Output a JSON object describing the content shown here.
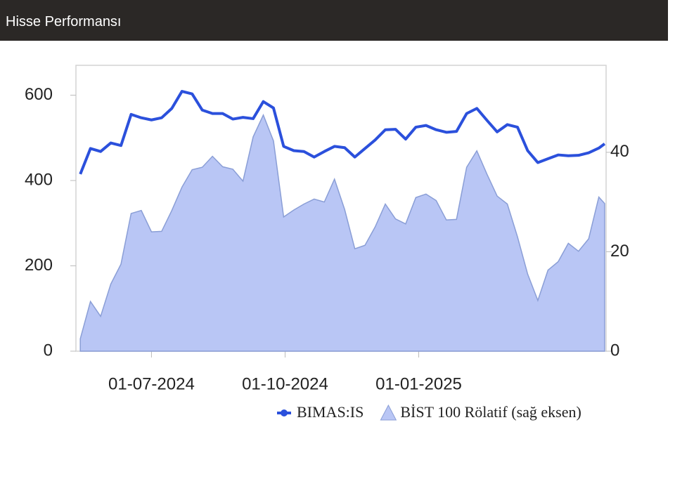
{
  "header": {
    "title": "Hisse Performansı"
  },
  "chart_data": {
    "type": "line",
    "x": [
      "2024-05-13",
      "2024-05-20",
      "2024-05-27",
      "2024-06-03",
      "2024-06-10",
      "2024-06-17",
      "2024-06-24",
      "2024-07-01",
      "2024-07-08",
      "2024-07-15",
      "2024-07-22",
      "2024-07-29",
      "2024-08-05",
      "2024-08-12",
      "2024-08-19",
      "2024-08-26",
      "2024-09-02",
      "2024-09-09",
      "2024-09-16",
      "2024-09-23",
      "2024-09-30",
      "2024-10-07",
      "2024-10-14",
      "2024-10-21",
      "2024-10-28",
      "2024-11-04",
      "2024-11-11",
      "2024-11-18",
      "2024-11-25",
      "2024-12-02",
      "2024-12-09",
      "2024-12-16",
      "2024-12-23",
      "2024-12-30",
      "2025-01-06",
      "2025-01-13",
      "2025-01-20",
      "2025-01-27",
      "2025-02-03",
      "2025-02-10",
      "2025-02-17",
      "2025-02-24",
      "2025-03-03",
      "2025-03-10",
      "2025-03-17",
      "2025-03-24",
      "2025-03-31",
      "2025-04-07",
      "2025-04-14",
      "2025-04-21",
      "2025-04-28",
      "2025-05-05",
      "2025-05-09"
    ],
    "series": [
      {
        "name": "BIMAS:IS",
        "color": "#2b50dc",
        "values": [
          415,
          475,
          468,
          488,
          482,
          555,
          547,
          542,
          547,
          569,
          609,
          603,
          565,
          557,
          557,
          544,
          548,
          545,
          585,
          570,
          480,
          470,
          468,
          455,
          468,
          480,
          477,
          455,
          475,
          495,
          519,
          520,
          497,
          525,
          529,
          519,
          513,
          515,
          557,
          569,
          541,
          514,
          531,
          525,
          470,
          442,
          451,
          460,
          458,
          459,
          465,
          476,
          486
        ]
      },
      {
        "name": "BİST 100 Rölatif (sağ eksen)",
        "color": "#b9c6f5",
        "axis": "y2",
        "values": [
          2.5,
          10,
          7,
          13.5,
          17.5,
          27.7,
          28.3,
          24,
          24.1,
          28.3,
          33,
          36.5,
          37,
          39.2,
          37.1,
          36.6,
          34.2,
          43.1,
          47.5,
          42.3,
          27,
          28.4,
          29.6,
          30.6,
          30,
          34.6,
          28.5,
          20.6,
          21.3,
          25,
          29.6,
          26.6,
          25.6,
          30.9,
          31.6,
          30.3,
          26.4,
          26.5,
          37,
          40.3,
          35.6,
          31.2,
          29.6,
          23,
          15.5,
          10.2,
          16.3,
          18,
          21.7,
          20.1,
          22.6,
          31,
          29.7
        ]
      }
    ],
    "xlim": [
      "2024-05-10",
      "2025-05-10"
    ],
    "xticks": [
      {
        "value": "2024-07-01",
        "label": "01-07-2024"
      },
      {
        "value": "2024-10-01",
        "label": "01-10-2024"
      },
      {
        "value": "2025-01-01",
        "label": "01-01-2025"
      }
    ],
    "ylim": [
      0,
      670
    ],
    "yticks": [
      0,
      200,
      400,
      600
    ],
    "y2lim": [
      0,
      57.5
    ],
    "y2ticks": [
      0,
      20,
      40
    ]
  }
}
